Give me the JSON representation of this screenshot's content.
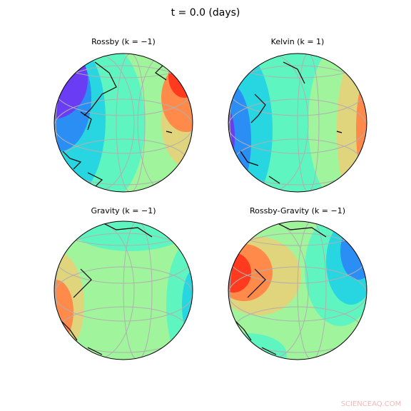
{
  "title": "t = 0.0 (days)",
  "panels": [
    {
      "title": "Rossby (k = −1)"
    },
    {
      "title": "Kelvin (k = 1)"
    },
    {
      "title": "Gravity (k = −1)"
    },
    {
      "title": "Rossby-Gravity (k = −1)"
    }
  ],
  "watermark": "SCIENCEAQ.COM"
}
